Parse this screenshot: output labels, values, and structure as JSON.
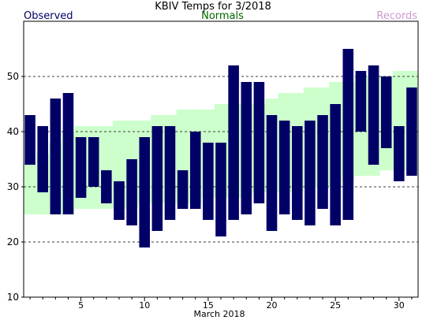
{
  "chart_data": {
    "type": "bar",
    "title": "KBIV Temps for 3/2018",
    "xlabel": "March 2018",
    "ylabel": "",
    "ylim": [
      10,
      60
    ],
    "xlim": [
      0.5,
      31.5
    ],
    "y_ticks": [
      10,
      20,
      30,
      40,
      50
    ],
    "x_ticks": [
      5,
      10,
      15,
      20,
      25,
      30
    ],
    "grid": "horizontal dashed at 20, 30, 40, 50",
    "legend": {
      "observed": "Observed",
      "normals": "Normals",
      "records": "Records"
    },
    "colors": {
      "observed": "#000066",
      "normals": "#ccffcc",
      "records": "#cc99cc",
      "normals_label": "#006600",
      "title": "#000000"
    },
    "days": [
      1,
      2,
      3,
      4,
      5,
      6,
      7,
      8,
      9,
      10,
      11,
      12,
      13,
      14,
      15,
      16,
      17,
      18,
      19,
      20,
      21,
      22,
      23,
      24,
      25,
      26,
      27,
      28,
      29,
      30,
      31
    ],
    "series": [
      {
        "name": "Observed",
        "high": [
          43,
          41,
          46,
          47,
          39,
          39,
          33,
          31,
          35,
          39,
          41,
          41,
          33,
          40,
          38,
          38,
          52,
          49,
          49,
          43,
          42,
          41,
          42,
          43,
          45,
          55,
          51,
          52,
          50,
          41,
          48
        ],
        "low": [
          34,
          29,
          25,
          25,
          28,
          30,
          27,
          24,
          23,
          19,
          22,
          24,
          26,
          26,
          24,
          21,
          24,
          25,
          27,
          22,
          25,
          24,
          23,
          26,
          23,
          24,
          40,
          34,
          37,
          31,
          32
        ]
      },
      {
        "name": "Normals",
        "high": [
          34,
          36,
          38,
          40,
          41,
          41,
          41,
          42,
          42,
          42,
          43,
          43,
          44,
          44,
          44,
          45,
          45,
          45,
          45,
          46,
          47,
          47,
          48,
          48,
          49,
          49,
          50,
          50,
          50,
          51,
          51
        ],
        "low": [
          25,
          25,
          25,
          25,
          26,
          26,
          26,
          26,
          26,
          27,
          27,
          27,
          27,
          27,
          28,
          28,
          28,
          28,
          29,
          29,
          29,
          29,
          30,
          30,
          30,
          31,
          32,
          32,
          33,
          33,
          33
        ]
      }
    ]
  }
}
